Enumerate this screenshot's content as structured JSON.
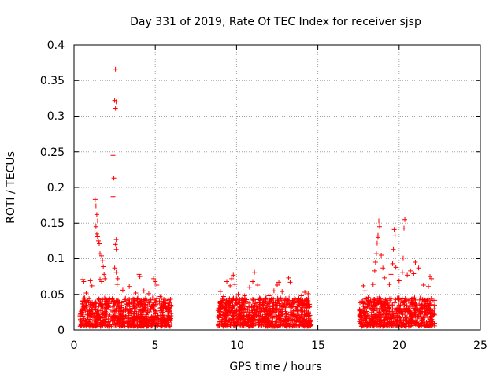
{
  "chart_data": {
    "type": "scatter",
    "title": "Day 331 of 2019, Rate Of TEC Index for receiver sjsp",
    "xlabel": "GPS time / hours",
    "ylabel": "ROTI / TECUs",
    "xlim": [
      0,
      25
    ],
    "ylim": [
      0,
      0.4
    ],
    "x_ticks": [
      0,
      5,
      10,
      15,
      20,
      25
    ],
    "x_tick_labels": [
      "0",
      "5",
      "10",
      "15",
      "20",
      "25"
    ],
    "y_ticks": [
      0,
      0.05,
      0.1,
      0.15,
      0.2,
      0.25,
      0.3,
      0.35,
      0.4
    ],
    "y_tick_labels": [
      "0",
      "0.05",
      "0.1",
      "0.15",
      "0.2",
      "0.25",
      "0.3",
      "0.35",
      "0.4"
    ],
    "grid": true,
    "marker": "+",
    "marker_color": "#ff0000",
    "series": [
      {
        "name": "ROTI",
        "points": [
          [
            0.55,
            0.071
          ],
          [
            0.6,
            0.068
          ],
          [
            0.65,
            0.045
          ],
          [
            0.75,
            0.052
          ],
          [
            1.0,
            0.069
          ],
          [
            1.1,
            0.062
          ],
          [
            1.3,
            0.183
          ],
          [
            1.35,
            0.174
          ],
          [
            1.4,
            0.162
          ],
          [
            1.45,
            0.153
          ],
          [
            1.35,
            0.145
          ],
          [
            1.4,
            0.135
          ],
          [
            1.45,
            0.131
          ],
          [
            1.5,
            0.125
          ],
          [
            1.55,
            0.121
          ],
          [
            1.6,
            0.107
          ],
          [
            1.7,
            0.104
          ],
          [
            1.75,
            0.097
          ],
          [
            1.8,
            0.089
          ],
          [
            1.85,
            0.078
          ],
          [
            1.9,
            0.072
          ],
          [
            1.6,
            0.071
          ],
          [
            1.7,
            0.068
          ],
          [
            2.4,
            0.245
          ],
          [
            2.45,
            0.213
          ],
          [
            2.4,
            0.187
          ],
          [
            2.55,
            0.366
          ],
          [
            2.5,
            0.322
          ],
          [
            2.6,
            0.32
          ],
          [
            2.55,
            0.311
          ],
          [
            2.6,
            0.127
          ],
          [
            2.55,
            0.12
          ],
          [
            2.6,
            0.113
          ],
          [
            2.5,
            0.087
          ],
          [
            2.6,
            0.081
          ],
          [
            2.7,
            0.072
          ],
          [
            2.65,
            0.064
          ],
          [
            3.0,
            0.056
          ],
          [
            3.4,
            0.061
          ],
          [
            3.8,
            0.052
          ],
          [
            4.0,
            0.078
          ],
          [
            4.05,
            0.075
          ],
          [
            4.3,
            0.055
          ],
          [
            4.6,
            0.051
          ],
          [
            4.9,
            0.072
          ],
          [
            5.0,
            0.068
          ],
          [
            5.1,
            0.063
          ],
          [
            5.3,
            0.047
          ],
          [
            5.5,
            0.031
          ],
          [
            9.0,
            0.054
          ],
          [
            9.2,
            0.047
          ],
          [
            9.4,
            0.068
          ],
          [
            9.6,
            0.062
          ],
          [
            9.7,
            0.072
          ],
          [
            9.8,
            0.077
          ],
          [
            9.9,
            0.064
          ],
          [
            10.1,
            0.05
          ],
          [
            10.5,
            0.048
          ],
          [
            10.8,
            0.06
          ],
          [
            11.0,
            0.068
          ],
          [
            11.1,
            0.081
          ],
          [
            11.3,
            0.063
          ],
          [
            11.6,
            0.038
          ],
          [
            12.0,
            0.048
          ],
          [
            12.3,
            0.055
          ],
          [
            12.5,
            0.063
          ],
          [
            12.6,
            0.067
          ],
          [
            12.8,
            0.054
          ],
          [
            13.2,
            0.073
          ],
          [
            13.3,
            0.067
          ],
          [
            13.8,
            0.044
          ],
          [
            14.0,
            0.048
          ],
          [
            14.2,
            0.053
          ],
          [
            14.4,
            0.051
          ],
          [
            17.8,
            0.062
          ],
          [
            17.9,
            0.055
          ],
          [
            18.1,
            0.046
          ],
          [
            18.4,
            0.064
          ],
          [
            18.5,
            0.083
          ],
          [
            18.55,
            0.095
          ],
          [
            18.6,
            0.107
          ],
          [
            18.65,
            0.122
          ],
          [
            18.7,
            0.133
          ],
          [
            18.75,
            0.153
          ],
          [
            18.8,
            0.145
          ],
          [
            18.7,
            0.13
          ],
          [
            18.9,
            0.105
          ],
          [
            19.0,
            0.087
          ],
          [
            19.1,
            0.073
          ],
          [
            19.4,
            0.064
          ],
          [
            19.5,
            0.078
          ],
          [
            19.6,
            0.093
          ],
          [
            19.65,
            0.113
          ],
          [
            19.7,
            0.141
          ],
          [
            19.75,
            0.133
          ],
          [
            19.8,
            0.088
          ],
          [
            20.0,
            0.069
          ],
          [
            20.2,
            0.081
          ],
          [
            20.25,
            0.101
          ],
          [
            20.3,
            0.143
          ],
          [
            20.35,
            0.155
          ],
          [
            20.5,
            0.077
          ],
          [
            20.7,
            0.083
          ],
          [
            20.9,
            0.079
          ],
          [
            21.0,
            0.095
          ],
          [
            21.2,
            0.087
          ],
          [
            21.5,
            0.063
          ],
          [
            21.8,
            0.061
          ],
          [
            21.9,
            0.075
          ],
          [
            22.0,
            0.072
          ]
        ],
        "dense_bands": [
          {
            "x_from": 0.35,
            "x_to": 6.0,
            "y_min": 0.005,
            "y_max": 0.045
          },
          {
            "x_from": 8.85,
            "x_to": 14.6,
            "y_min": 0.005,
            "y_max": 0.045
          },
          {
            "x_from": 17.55,
            "x_to": 22.2,
            "y_min": 0.005,
            "y_max": 0.045
          }
        ]
      }
    ]
  }
}
